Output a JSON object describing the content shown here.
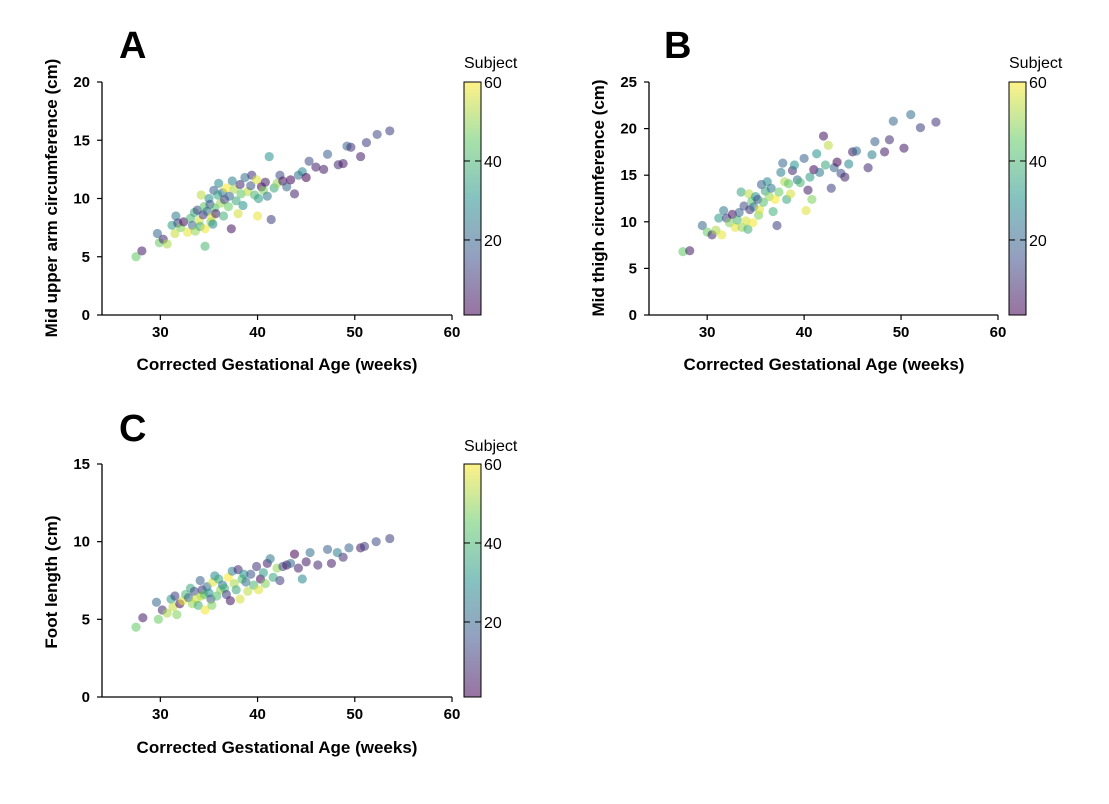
{
  "chart_data": [
    {
      "type": "scatter",
      "panel": "A",
      "xlabel": "Corrected Gestational Age (weeks)",
      "ylabel": "Mid upper arm circumference (cm)",
      "xlim": [
        24,
        60
      ],
      "ylim": [
        0,
        20
      ],
      "xticks": [
        30,
        40,
        50,
        60
      ],
      "yticks": [
        0,
        5,
        10,
        15,
        20
      ],
      "colorbar": {
        "title": "Subject",
        "range": [
          1,
          60
        ],
        "ticks": [
          20,
          40,
          60
        ]
      },
      "points": [
        [
          27.5,
          5.0,
          45
        ],
        [
          28.1,
          5.5,
          5
        ],
        [
          29.7,
          7.0,
          20
        ],
        [
          29.9,
          6.2,
          46
        ],
        [
          30.3,
          6.5,
          8
        ],
        [
          30.7,
          6.1,
          52
        ],
        [
          31.2,
          7.7,
          33
        ],
        [
          31.5,
          7.0,
          55
        ],
        [
          31.6,
          8.5,
          25
        ],
        [
          31.8,
          7.9,
          12
        ],
        [
          32.1,
          7.5,
          48
        ],
        [
          32.4,
          8.0,
          3
        ],
        [
          32.8,
          7.1,
          58
        ],
        [
          33.1,
          8.3,
          40
        ],
        [
          33.3,
          7.7,
          20
        ],
        [
          33.5,
          8.8,
          36
        ],
        [
          33.6,
          7.2,
          50
        ],
        [
          33.8,
          9.0,
          14
        ],
        [
          34.0,
          8.1,
          56
        ],
        [
          34.1,
          7.6,
          38
        ],
        [
          34.2,
          10.3,
          54
        ],
        [
          34.4,
          8.6,
          10
        ],
        [
          34.5,
          9.3,
          44
        ],
        [
          34.6,
          7.4,
          59
        ],
        [
          34.6,
          5.9,
          40
        ],
        [
          34.8,
          8.9,
          22
        ],
        [
          35.0,
          10.0,
          30
        ],
        [
          35.1,
          9.5,
          16
        ],
        [
          35.2,
          8.0,
          48
        ],
        [
          35.3,
          8.4,
          57
        ],
        [
          35.4,
          7.8,
          28
        ],
        [
          35.5,
          10.7,
          18
        ],
        [
          35.6,
          9.2,
          42
        ],
        [
          35.7,
          8.7,
          6
        ],
        [
          35.9,
          10.3,
          35
        ],
        [
          36.0,
          11.3,
          28
        ],
        [
          36.2,
          9.6,
          50
        ],
        [
          36.4,
          10.5,
          24
        ],
        [
          36.5,
          8.5,
          38
        ],
        [
          36.6,
          9.9,
          12
        ],
        [
          36.8,
          10.9,
          60
        ],
        [
          37.0,
          9.3,
          46
        ],
        [
          37.1,
          10.2,
          20
        ],
        [
          37.3,
          7.4,
          4
        ],
        [
          37.4,
          11.5,
          26
        ],
        [
          37.6,
          10.8,
          52
        ],
        [
          37.8,
          9.8,
          36
        ],
        [
          38.0,
          8.7,
          56
        ],
        [
          38.2,
          11.2,
          8
        ],
        [
          38.3,
          10.4,
          44
        ],
        [
          38.5,
          9.4,
          30
        ],
        [
          38.7,
          11.8,
          22
        ],
        [
          39.0,
          10.6,
          54
        ],
        [
          39.3,
          11.1,
          16
        ],
        [
          39.4,
          12.0,
          10
        ],
        [
          39.7,
          10.3,
          40
        ],
        [
          39.9,
          11.6,
          57
        ],
        [
          40.0,
          8.5,
          58
        ],
        [
          40.1,
          10.0,
          33
        ],
        [
          40.4,
          11.0,
          2
        ],
        [
          40.6,
          10.7,
          48
        ],
        [
          40.8,
          11.4,
          6
        ],
        [
          41.0,
          10.2,
          24
        ],
        [
          41.2,
          13.6,
          30
        ],
        [
          41.4,
          8.2,
          12
        ],
        [
          41.7,
          10.9,
          36
        ],
        [
          42.0,
          11.3,
          50
        ],
        [
          42.3,
          12.0,
          14
        ],
        [
          42.6,
          11.5,
          4
        ],
        [
          43.0,
          11.0,
          20
        ],
        [
          43.4,
          11.6,
          2
        ],
        [
          43.8,
          10.4,
          7
        ],
        [
          44.2,
          12.0,
          22
        ],
        [
          44.6,
          12.3,
          28
        ],
        [
          45.0,
          11.8,
          1
        ],
        [
          45.3,
          13.2,
          14
        ],
        [
          46.0,
          12.7,
          6
        ],
        [
          46.8,
          12.5,
          5
        ],
        [
          47.2,
          13.8,
          18
        ],
        [
          48.3,
          12.9,
          8
        ],
        [
          48.8,
          13.0,
          5
        ],
        [
          49.2,
          14.5,
          20
        ],
        [
          49.6,
          14.4,
          9
        ],
        [
          50.6,
          13.6,
          6
        ],
        [
          51.2,
          14.8,
          12
        ],
        [
          52.3,
          15.5,
          14
        ],
        [
          53.6,
          15.8,
          12
        ]
      ]
    },
    {
      "type": "scatter",
      "panel": "B",
      "xlabel": "Corrected Gestational Age (weeks)",
      "ylabel": "Mid thigh circumference (cm)",
      "xlim": [
        24,
        60
      ],
      "ylim": [
        0,
        25
      ],
      "xticks": [
        30,
        40,
        50,
        60
      ],
      "yticks": [
        0,
        5,
        10,
        15,
        20,
        25
      ],
      "colorbar": {
        "title": "Subject",
        "range": [
          1,
          60
        ],
        "ticks": [
          20,
          40,
          60
        ]
      },
      "points": [
        [
          27.5,
          6.8,
          45
        ],
        [
          28.2,
          6.9,
          5
        ],
        [
          29.5,
          9.6,
          20
        ],
        [
          30.0,
          8.9,
          46
        ],
        [
          30.5,
          8.6,
          8
        ],
        [
          30.9,
          9.1,
          52
        ],
        [
          31.2,
          10.4,
          33
        ],
        [
          31.5,
          8.6,
          58
        ],
        [
          31.7,
          11.2,
          25
        ],
        [
          32.0,
          10.4,
          12
        ],
        [
          32.3,
          9.9,
          48
        ],
        [
          32.6,
          10.8,
          3
        ],
        [
          32.9,
          9.4,
          58
        ],
        [
          33.1,
          10.2,
          40
        ],
        [
          33.3,
          11.0,
          20
        ],
        [
          33.5,
          13.2,
          36
        ],
        [
          33.6,
          9.4,
          50
        ],
        [
          33.8,
          11.7,
          14
        ],
        [
          34.0,
          10.1,
          56
        ],
        [
          34.2,
          9.2,
          38
        ],
        [
          34.3,
          13.0,
          54
        ],
        [
          34.4,
          11.3,
          10
        ],
        [
          34.6,
          12.2,
          44
        ],
        [
          34.7,
          9.9,
          59
        ],
        [
          34.8,
          11.6,
          22
        ],
        [
          35.0,
          12.7,
          30
        ],
        [
          35.2,
          12.4,
          16
        ],
        [
          35.3,
          10.7,
          48
        ],
        [
          35.4,
          11.3,
          57
        ],
        [
          35.6,
          14.0,
          18
        ],
        [
          35.8,
          12.1,
          42
        ],
        [
          36.0,
          13.3,
          35
        ],
        [
          36.2,
          14.3,
          28
        ],
        [
          36.4,
          12.7,
          50
        ],
        [
          36.6,
          13.6,
          24
        ],
        [
          36.8,
          11.1,
          38
        ],
        [
          37.0,
          12.4,
          60
        ],
        [
          37.2,
          9.6,
          12
        ],
        [
          37.4,
          13.2,
          46
        ],
        [
          37.6,
          15.3,
          26
        ],
        [
          37.8,
          16.3,
          20
        ],
        [
          38.0,
          14.3,
          52
        ],
        [
          38.2,
          12.4,
          36
        ],
        [
          38.4,
          14.1,
          44
        ],
        [
          38.6,
          13.0,
          56
        ],
        [
          38.8,
          15.5,
          8
        ],
        [
          39.0,
          16.1,
          30
        ],
        [
          39.3,
          14.5,
          22
        ],
        [
          39.6,
          14.2,
          40
        ],
        [
          40.0,
          16.8,
          18
        ],
        [
          40.2,
          11.2,
          57
        ],
        [
          40.4,
          13.4,
          6
        ],
        [
          40.6,
          14.8,
          33
        ],
        [
          40.8,
          12.4,
          48
        ],
        [
          41.0,
          15.6,
          2
        ],
        [
          41.3,
          17.3,
          30
        ],
        [
          41.6,
          15.3,
          24
        ],
        [
          42.0,
          19.2,
          4
        ],
        [
          42.2,
          16.1,
          36
        ],
        [
          42.5,
          18.2,
          54
        ],
        [
          42.8,
          13.6,
          12
        ],
        [
          43.1,
          15.8,
          20
        ],
        [
          43.4,
          16.4,
          1
        ],
        [
          43.8,
          15.2,
          14
        ],
        [
          44.2,
          14.8,
          7
        ],
        [
          44.6,
          16.2,
          28
        ],
        [
          45.0,
          17.5,
          5
        ],
        [
          45.4,
          17.6,
          22
        ],
        [
          46.6,
          15.8,
          8
        ],
        [
          47.0,
          17.2,
          26
        ],
        [
          47.3,
          18.6,
          18
        ],
        [
          48.3,
          17.5,
          6
        ],
        [
          48.8,
          18.8,
          9
        ],
        [
          49.2,
          20.8,
          20
        ],
        [
          50.3,
          17.9,
          5
        ],
        [
          51.0,
          21.5,
          22
        ],
        [
          52.0,
          20.1,
          12
        ],
        [
          53.6,
          20.7,
          10
        ]
      ]
    },
    {
      "type": "scatter",
      "panel": "C",
      "xlabel": "Corrected Gestational Age (weeks)",
      "ylabel": "Foot length (cm)",
      "xlim": [
        24,
        60
      ],
      "ylim": [
        0,
        15
      ],
      "xticks": [
        30,
        40,
        50,
        60
      ],
      "yticks": [
        0,
        5,
        10,
        15
      ],
      "colorbar": {
        "title": "Subject",
        "range": [
          1,
          60
        ],
        "ticks": [
          20,
          40,
          60
        ]
      },
      "points": [
        [
          27.5,
          4.5,
          45
        ],
        [
          28.2,
          5.1,
          5
        ],
        [
          29.6,
          6.1,
          20
        ],
        [
          29.8,
          5.0,
          46
        ],
        [
          30.2,
          5.6,
          8
        ],
        [
          30.7,
          5.4,
          52
        ],
        [
          31.1,
          6.3,
          33
        ],
        [
          31.3,
          5.8,
          55
        ],
        [
          31.5,
          6.5,
          12
        ],
        [
          31.7,
          5.3,
          48
        ],
        [
          32.0,
          6.0,
          3
        ],
        [
          32.3,
          6.2,
          58
        ],
        [
          32.6,
          6.6,
          40
        ],
        [
          32.9,
          6.4,
          20
        ],
        [
          33.1,
          7.0,
          36
        ],
        [
          33.3,
          6.0,
          50
        ],
        [
          33.5,
          6.8,
          14
        ],
        [
          33.7,
          6.3,
          56
        ],
        [
          33.9,
          5.9,
          38
        ],
        [
          34.1,
          7.5,
          18
        ],
        [
          34.2,
          6.5,
          54
        ],
        [
          34.3,
          6.9,
          10
        ],
        [
          34.5,
          6.6,
          44
        ],
        [
          34.6,
          5.6,
          59
        ],
        [
          34.8,
          7.1,
          22
        ],
        [
          35.0,
          6.7,
          30
        ],
        [
          35.2,
          6.3,
          16
        ],
        [
          35.3,
          5.9,
          48
        ],
        [
          35.4,
          7.4,
          57
        ],
        [
          35.6,
          7.8,
          28
        ],
        [
          35.8,
          6.5,
          42
        ],
        [
          36.0,
          7.6,
          35
        ],
        [
          36.2,
          6.9,
          50
        ],
        [
          36.4,
          7.2,
          24
        ],
        [
          36.6,
          7.0,
          38
        ],
        [
          36.8,
          6.6,
          12
        ],
        [
          37.0,
          7.7,
          60
        ],
        [
          37.2,
          6.2,
          4
        ],
        [
          37.4,
          8.1,
          26
        ],
        [
          37.6,
          7.3,
          52
        ],
        [
          37.8,
          6.9,
          36
        ],
        [
          38.0,
          8.2,
          8
        ],
        [
          38.2,
          6.3,
          56
        ],
        [
          38.4,
          7.6,
          44
        ],
        [
          38.6,
          7.9,
          30
        ],
        [
          38.8,
          7.4,
          22
        ],
        [
          39.0,
          6.8,
          54
        ],
        [
          39.3,
          7.9,
          16
        ],
        [
          39.6,
          7.2,
          40
        ],
        [
          39.9,
          8.4,
          10
        ],
        [
          40.1,
          6.9,
          57
        ],
        [
          40.3,
          7.6,
          2
        ],
        [
          40.6,
          8.0,
          33
        ],
        [
          40.8,
          7.3,
          48
        ],
        [
          41.0,
          8.6,
          6
        ],
        [
          41.3,
          8.9,
          24
        ],
        [
          41.6,
          7.7,
          36
        ],
        [
          42.0,
          8.3,
          50
        ],
        [
          42.3,
          7.5,
          12
        ],
        [
          42.6,
          8.4,
          14
        ],
        [
          43.0,
          8.5,
          4
        ],
        [
          43.4,
          8.6,
          20
        ],
        [
          43.8,
          9.2,
          1
        ],
        [
          44.2,
          8.3,
          7
        ],
        [
          44.6,
          7.6,
          28
        ],
        [
          45.0,
          8.7,
          5
        ],
        [
          45.4,
          9.3,
          22
        ],
        [
          46.2,
          8.5,
          8
        ],
        [
          47.2,
          9.5,
          18
        ],
        [
          47.6,
          8.6,
          6
        ],
        [
          48.2,
          9.3,
          26
        ],
        [
          48.8,
          9.0,
          9
        ],
        [
          49.4,
          9.6,
          20
        ],
        [
          50.6,
          9.6,
          5
        ],
        [
          51.0,
          9.7,
          12
        ],
        [
          52.2,
          10.0,
          14
        ],
        [
          53.6,
          10.2,
          12
        ]
      ]
    }
  ],
  "colormap": [
    "#440154",
    "#3b528b",
    "#21918c",
    "#5ec962",
    "#fde725"
  ]
}
